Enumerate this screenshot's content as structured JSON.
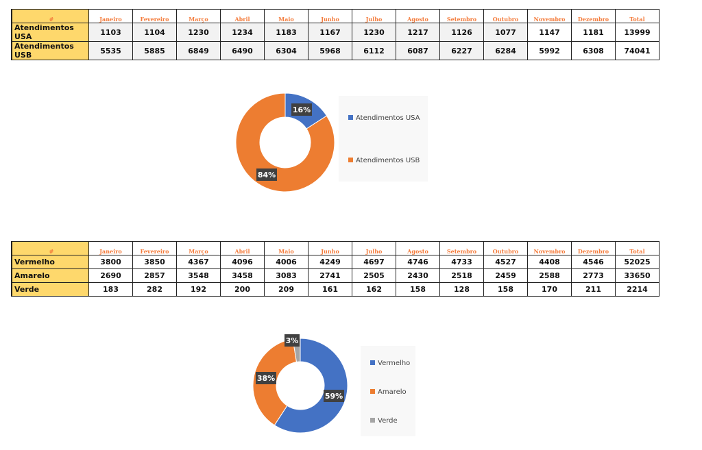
{
  "months": [
    "Janeiro",
    "Fevereiro",
    "Março",
    "Abril",
    "Maio",
    "Junho",
    "Julho",
    "Agosto",
    "Setembro",
    "Outubro",
    "Novembro",
    "Dezembro",
    "Total"
  ],
  "header_hash": "#",
  "table1": [
    {
      "label": "Atendimentos USA",
      "values": [
        1103,
        1104,
        1230,
        1234,
        1183,
        1167,
        1230,
        1217,
        1126,
        1077,
        1147,
        1181,
        13999
      ]
    },
    {
      "label": "Atendimentos USB",
      "values": [
        5535,
        5885,
        6849,
        6490,
        6304,
        5968,
        6112,
        6087,
        6227,
        6284,
        5992,
        6308,
        74041
      ]
    }
  ],
  "table2": [
    {
      "label": "Vermelho",
      "values": [
        3800,
        3850,
        4367,
        4096,
        4006,
        4249,
        4697,
        4746,
        4733,
        4527,
        4408,
        4546,
        52025
      ]
    },
    {
      "label": "Amarelo",
      "values": [
        2690,
        2857,
        3548,
        3458,
        3083,
        2741,
        2505,
        2430,
        2518,
        2459,
        2588,
        2773,
        33650
      ]
    },
    {
      "label": "Verde",
      "values": [
        183,
        282,
        192,
        200,
        209,
        161,
        162,
        158,
        128,
        158,
        170,
        211,
        2214
      ]
    }
  ],
  "chart_data": [
    {
      "type": "pie",
      "subtype": "donut",
      "categories": [
        "Atendimentos USA",
        "Atendimentos USB"
      ],
      "values": [
        13999,
        74041
      ],
      "labels": [
        "16%",
        "84%"
      ],
      "colors": [
        "#4472c4",
        "#ed7d31"
      ],
      "legend": "right"
    },
    {
      "type": "pie",
      "subtype": "donut",
      "categories": [
        "Vermelho",
        "Amarelo",
        "Verde"
      ],
      "values": [
        52025,
        33650,
        2214
      ],
      "labels": [
        "59%",
        "38%",
        "3%"
      ],
      "colors": [
        "#4472c4",
        "#ed7d31",
        "#a5a5a5"
      ],
      "legend": "right"
    }
  ]
}
